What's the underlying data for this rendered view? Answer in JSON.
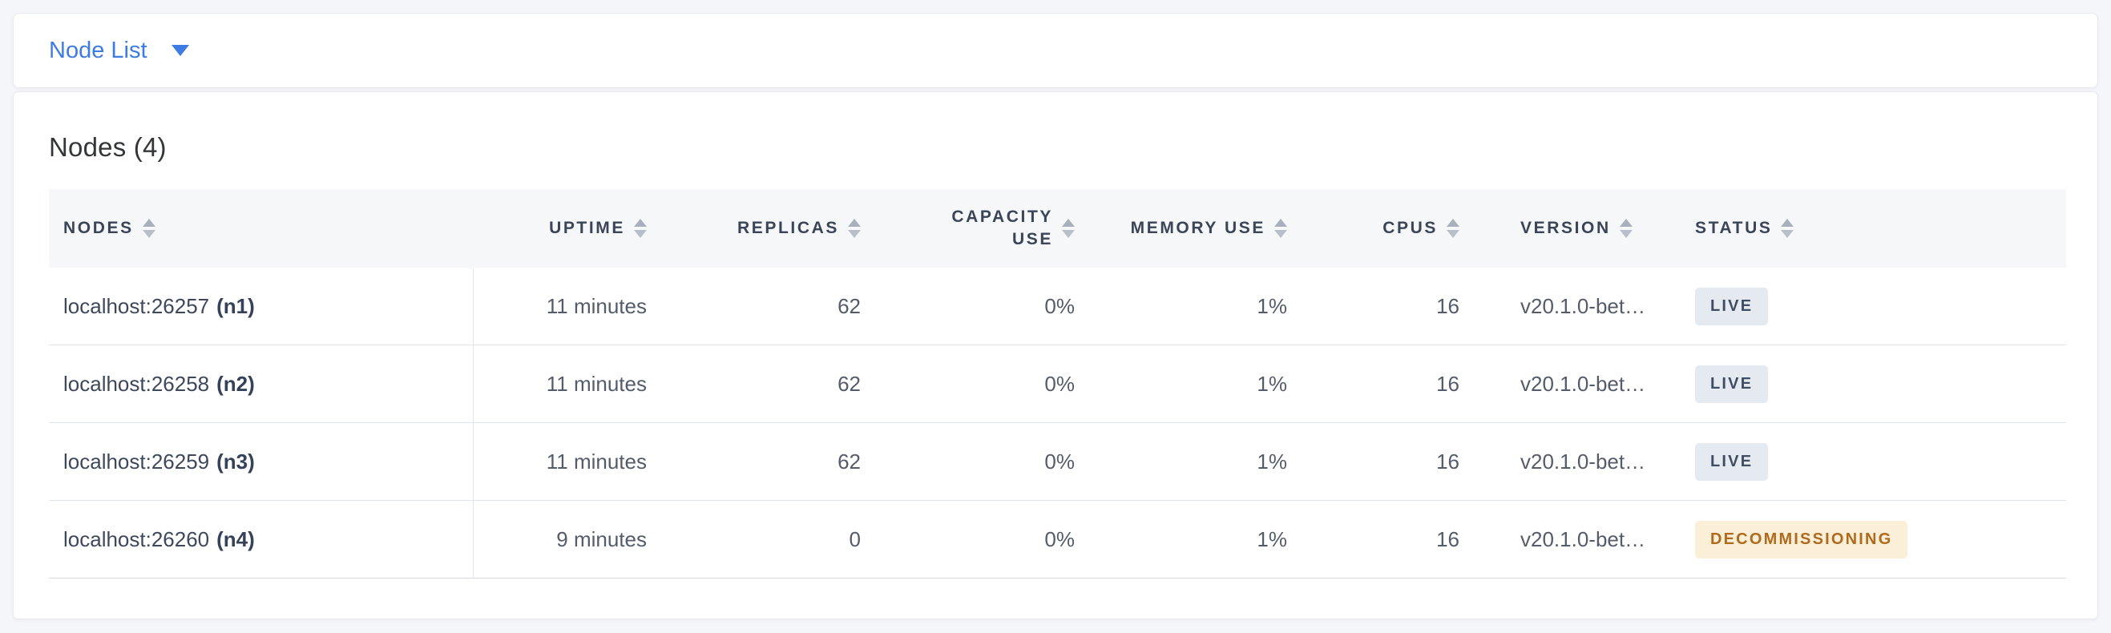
{
  "colors": {
    "page_background": "#f4f6fa",
    "accent_blue": "#3d7ce2",
    "header_text": "#3b4558",
    "live_badge_bg": "#e5eaf1",
    "live_badge_text": "#3f4d63",
    "decommissioning_badge_bg": "#fcefd8",
    "decommissioning_badge_text": "#b06a1e"
  },
  "icons": {
    "dropdown": "caret-down-icon",
    "column_sort": "sort-arrows-icon"
  },
  "toolbar": {
    "view_selector_label": "Node List"
  },
  "main": {
    "title": "Nodes (4)",
    "table": {
      "columns": [
        {
          "label": "NODES"
        },
        {
          "label": "UPTIME"
        },
        {
          "label": "REPLICAS"
        },
        {
          "label": "CAPACITY USE"
        },
        {
          "label": "MEMORY USE"
        },
        {
          "label": "CPUS"
        },
        {
          "label": "VERSION"
        },
        {
          "label": "STATUS"
        }
      ],
      "rows": [
        {
          "address": "localhost:26257",
          "node_id": "(n1)",
          "uptime": "11 minutes",
          "replicas": "62",
          "capacity_use": "0%",
          "memory_use": "1%",
          "cpus": "16",
          "version": "v20.1.0-bet…",
          "status": "LIVE"
        },
        {
          "address": "localhost:26258",
          "node_id": "(n2)",
          "uptime": "11 minutes",
          "replicas": "62",
          "capacity_use": "0%",
          "memory_use": "1%",
          "cpus": "16",
          "version": "v20.1.0-bet…",
          "status": "LIVE"
        },
        {
          "address": "localhost:26259",
          "node_id": "(n3)",
          "uptime": "11 minutes",
          "replicas": "62",
          "capacity_use": "0%",
          "memory_use": "1%",
          "cpus": "16",
          "version": "v20.1.0-bet…",
          "status": "LIVE"
        },
        {
          "address": "localhost:26260",
          "node_id": "(n4)",
          "uptime": "9 minutes",
          "replicas": "0",
          "capacity_use": "0%",
          "memory_use": "1%",
          "cpus": "16",
          "version": "v20.1.0-bet…",
          "status": "DECOMMISSIONING"
        }
      ]
    }
  }
}
